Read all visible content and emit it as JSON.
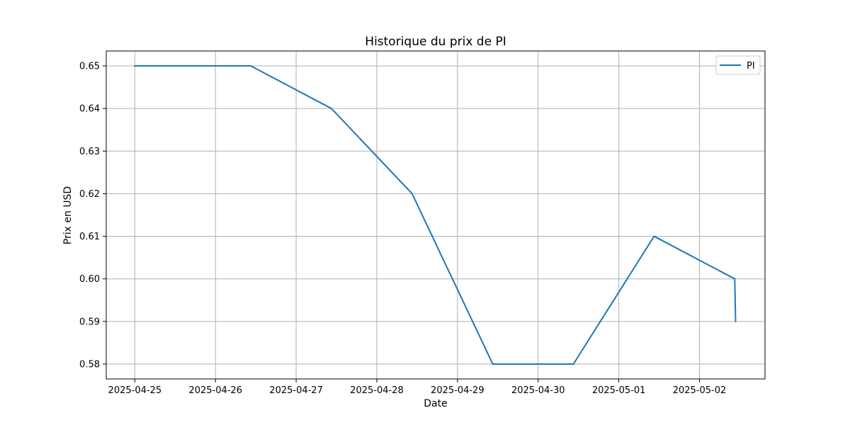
{
  "chart_data": {
    "type": "line",
    "title": "Historique du prix de PI",
    "xlabel": "Date",
    "ylabel": "Prix en USD",
    "x_ticks": [
      "2025-04-25",
      "2025-04-26",
      "2025-04-27",
      "2025-04-28",
      "2025-04-29",
      "2025-04-30",
      "2025-05-01",
      "2025-05-02"
    ],
    "y_ticks": [
      "0.58",
      "0.59",
      "0.60",
      "0.61",
      "0.62",
      "0.63",
      "0.64",
      "0.65"
    ],
    "xlim": [
      "2025-04-24T15:30",
      "2025-05-02T19:30"
    ],
    "ylim": [
      0.5765,
      0.6535
    ],
    "grid": true,
    "legend_position": "top-right",
    "series": [
      {
        "name": "PI",
        "color": "#1f77b4",
        "x": [
          "2025-04-25T00:00",
          "2025-04-26T10:30",
          "2025-04-27T10:30",
          "2025-04-28T10:30",
          "2025-04-29T10:30",
          "2025-04-30T10:30",
          "2025-05-01T10:30",
          "2025-05-02T10:30",
          "2025-05-02T10:45"
        ],
        "y": [
          0.65,
          0.65,
          0.64,
          0.62,
          0.58,
          0.58,
          0.61,
          0.6,
          0.59
        ]
      }
    ]
  }
}
